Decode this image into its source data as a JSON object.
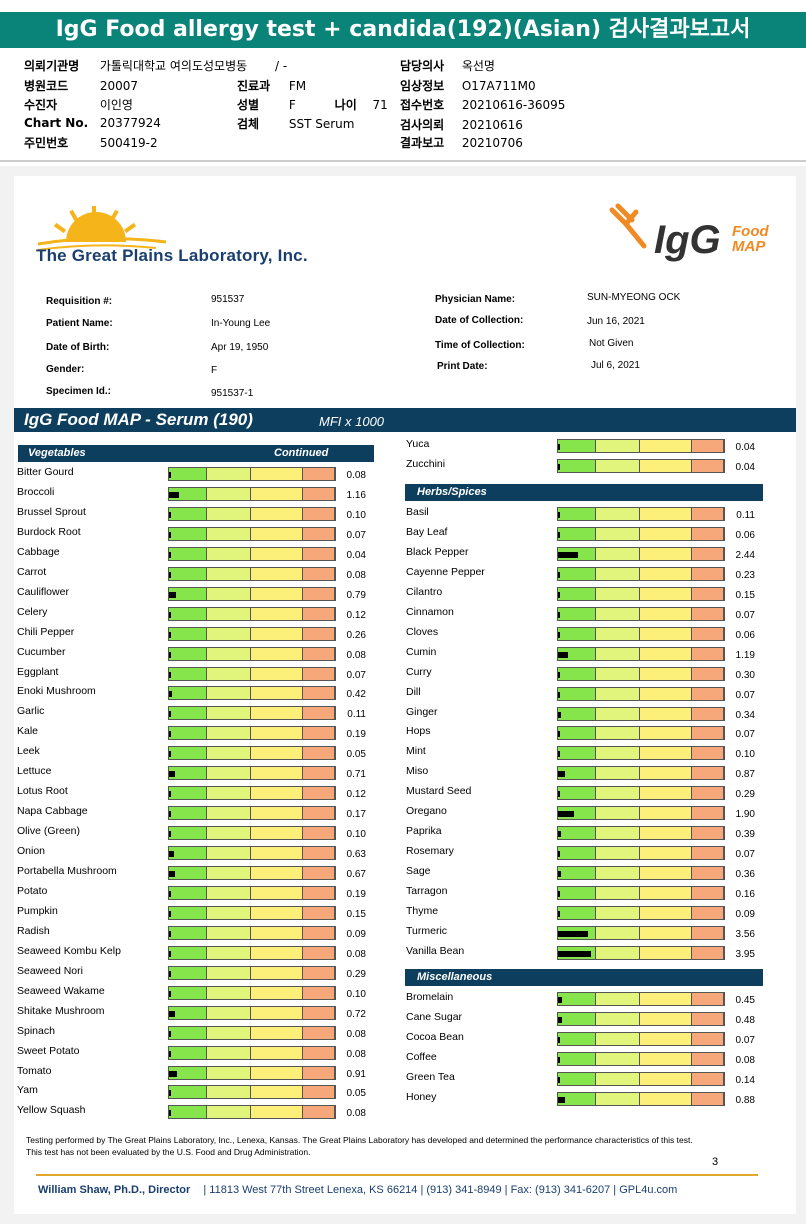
{
  "kr_header": {
    "title": "IgG Food allergy test + candida(192)(Asian) 검사결과보고서",
    "institution_label": "의뢰기관명",
    "institution_value": "가톨릭대학교 여의도성모병동",
    "institution_extra": "/ -",
    "hospital_code_label": "병원코드",
    "hospital_code_value": "20007",
    "patient_label": "수진자",
    "patient_value": "이인영",
    "chart_label": "Chart No.",
    "chart_value": "20377924",
    "id_label": "주민번호",
    "id_value": "500419-2",
    "dept_label": "진료과",
    "dept_value": "FM",
    "sex_label": "성별",
    "sex_value": "F",
    "age_label": "나이",
    "age_value": "71",
    "specimen_label": "검체",
    "specimen_value": "SST Serum",
    "doctor_label": "담당의사",
    "doctor_value": "옥선명",
    "clinical_label": "임상정보",
    "clinical_value": "O17A711M0",
    "receipt_label": "접수번호",
    "receipt_value": "20210616-36095",
    "request_label": "검사의뢰",
    "request_value": "20210616",
    "report_label": "결과보고",
    "report_value": "20210706"
  },
  "logos": {
    "gpl_name": "The Great Plains Laboratory, Inc.",
    "igg_text": "IgG",
    "igg_food": "Food",
    "igg_map": "MAP"
  },
  "patient_info": {
    "requisition_label": "Requisition #:",
    "requisition_value": "951537",
    "name_label": "Patient Name:",
    "name_value": "In-Young Lee",
    "dob_label": "Date of Birth:",
    "dob_value": "Apr 19, 1950",
    "gender_label": "Gender:",
    "gender_value": "F",
    "specimen_label": "Specimen Id.:",
    "specimen_value": "951537-1",
    "physician_label": "Physician Name:",
    "physician_value": "SUN-MYEONG OCK",
    "collection_date_label": "Date of Collection:",
    "collection_date_value": "Jun 16, 2021",
    "collection_time_label": "Time of Collection:",
    "collection_time_value": "Not Given",
    "print_date_label": "Print Date:",
    "print_date_value": "Jul  6,   2021"
  },
  "band": {
    "title": "IgG Food MAP - Serum (190)",
    "unit": "MFI x 1000"
  },
  "sections": {
    "vegetables": "Vegetables",
    "continued": "Continued",
    "herbs": "Herbs/Spices",
    "misc": "Miscellaneous"
  },
  "chart_data": {
    "type": "bar",
    "unit": "MFI x 1000",
    "vegetables": [
      {
        "name": "Bitter Gourd",
        "value": 0.08
      },
      {
        "name": "Broccoli",
        "value": 1.16
      },
      {
        "name": "Brussel Sprout",
        "value": 0.1
      },
      {
        "name": "Burdock Root",
        "value": 0.07
      },
      {
        "name": "Cabbage",
        "value": 0.04
      },
      {
        "name": "Carrot",
        "value": 0.08
      },
      {
        "name": "Cauliflower",
        "value": 0.79
      },
      {
        "name": "Celery",
        "value": 0.12
      },
      {
        "name": "Chili Pepper",
        "value": 0.26
      },
      {
        "name": "Cucumber",
        "value": 0.08
      },
      {
        "name": "Eggplant",
        "value": 0.07
      },
      {
        "name": "Enoki Mushroom",
        "value": 0.42
      },
      {
        "name": "Garlic",
        "value": 0.11
      },
      {
        "name": "Kale",
        "value": 0.19
      },
      {
        "name": "Leek",
        "value": 0.05
      },
      {
        "name": "Lettuce",
        "value": 0.71
      },
      {
        "name": "Lotus Root",
        "value": 0.12
      },
      {
        "name": "Napa Cabbage",
        "value": 0.17
      },
      {
        "name": "Olive (Green)",
        "value": 0.1
      },
      {
        "name": "Onion",
        "value": 0.63
      },
      {
        "name": "Portabella Mushroom",
        "value": 0.67
      },
      {
        "name": "Potato",
        "value": 0.19
      },
      {
        "name": "Pumpkin",
        "value": 0.15
      },
      {
        "name": "Radish",
        "value": 0.09
      },
      {
        "name": "Seaweed Kombu Kelp",
        "value": 0.08
      },
      {
        "name": "Seaweed Nori",
        "value": 0.29
      },
      {
        "name": "Seaweed Wakame",
        "value": 0.1
      },
      {
        "name": "Shitake Mushroom",
        "value": 0.72
      },
      {
        "name": "Spinach",
        "value": 0.08
      },
      {
        "name": "Sweet Potato",
        "value": 0.08
      },
      {
        "name": "Tomato",
        "value": 0.91
      },
      {
        "name": "Yam",
        "value": 0.05
      },
      {
        "name": "Yellow Squash",
        "value": 0.08
      }
    ],
    "vegetables_continued": [
      {
        "name": "Yuca",
        "value": 0.04
      },
      {
        "name": "Zucchini",
        "value": 0.04
      }
    ],
    "herbs_spices": [
      {
        "name": "Basil",
        "value": 0.11
      },
      {
        "name": "Bay Leaf",
        "value": 0.06
      },
      {
        "name": "Black Pepper",
        "value": 2.44
      },
      {
        "name": "Cayenne Pepper",
        "value": 0.23
      },
      {
        "name": "Cilantro",
        "value": 0.15
      },
      {
        "name": "Cinnamon",
        "value": 0.07
      },
      {
        "name": "Cloves",
        "value": 0.06
      },
      {
        "name": "Cumin",
        "value": 1.19
      },
      {
        "name": "Curry",
        "value": 0.3
      },
      {
        "name": "Dill",
        "value": 0.07
      },
      {
        "name": "Ginger",
        "value": 0.34
      },
      {
        "name": "Hops",
        "value": 0.07
      },
      {
        "name": "Mint",
        "value": 0.1
      },
      {
        "name": "Miso",
        "value": 0.87
      },
      {
        "name": "Mustard Seed",
        "value": 0.29
      },
      {
        "name": "Oregano",
        "value": 1.9
      },
      {
        "name": "Paprika",
        "value": 0.39
      },
      {
        "name": "Rosemary",
        "value": 0.07
      },
      {
        "name": "Sage",
        "value": 0.36
      },
      {
        "name": "Tarragon",
        "value": 0.16
      },
      {
        "name": "Thyme",
        "value": 0.09
      },
      {
        "name": "Turmeric",
        "value": 3.56
      },
      {
        "name": "Vanilla Bean",
        "value": 3.95
      }
    ],
    "miscellaneous": [
      {
        "name": "Bromelain",
        "value": 0.45
      },
      {
        "name": "Cane Sugar",
        "value": 0.48
      },
      {
        "name": "Cocoa Bean",
        "value": 0.07
      },
      {
        "name": "Coffee",
        "value": 0.08
      },
      {
        "name": "Green Tea",
        "value": 0.14
      },
      {
        "name": "Honey",
        "value": 0.88
      }
    ]
  },
  "footer": {
    "note": "Testing performed by The Great Plains Laboratory, Inc., Lenexa, Kansas.  The Great Plains Laboratory has developed and determined the performance characteristics of this test.  This test has not been evaluated by the U.S. Food and Drug Administration.",
    "page": "3",
    "director": "William Shaw, Ph.D., Director",
    "address": "|   11813 West 77th Street Lenexa, KS 66214   |   (913) 341-8949   |   Fax: (913) 341-6207   |   GPL4u.com"
  },
  "colors": {
    "kr_title_bg": "#0a8378",
    "band_bg": "#0d3e5e",
    "zone_green": "#86e54a",
    "zone_lightgreen": "#e1f57d",
    "zone_yellow": "#fdf07a",
    "zone_orange": "#f6a87a",
    "footer_line": "#e0a92b"
  }
}
